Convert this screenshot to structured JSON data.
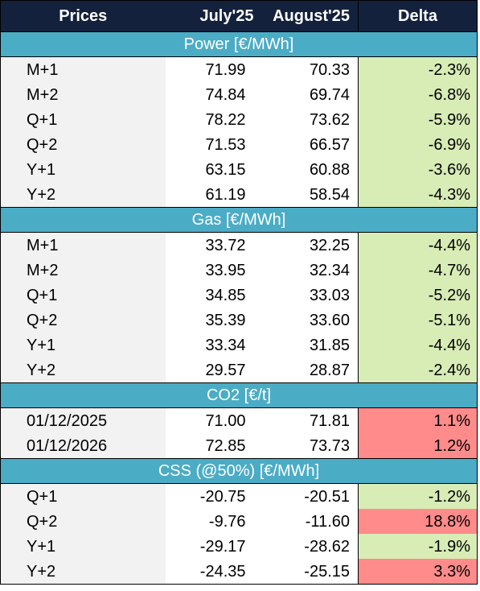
{
  "header": {
    "label": "Prices",
    "col_july": "July'25",
    "col_august": "August'25",
    "col_delta": "Delta"
  },
  "colors": {
    "header_bg": "#14213d",
    "section_bg": "#4bacc6",
    "delta_decrease_bg": "#d8ecb6",
    "delta_increase_bg": "#ff8b8b",
    "label_bg": "#f2f2f2"
  },
  "sections": [
    {
      "title": "Power [€/MWh]",
      "rows": [
        {
          "label": "M+1",
          "july": "71.99",
          "august": "70.33",
          "delta": "-2.3%",
          "trend": "down"
        },
        {
          "label": "M+2",
          "july": "74.84",
          "august": "69.74",
          "delta": "-6.8%",
          "trend": "down"
        },
        {
          "label": "Q+1",
          "july": "78.22",
          "august": "73.62",
          "delta": "-5.9%",
          "trend": "down"
        },
        {
          "label": "Q+2",
          "july": "71.53",
          "august": "66.57",
          "delta": "-6.9%",
          "trend": "down"
        },
        {
          "label": "Y+1",
          "july": "63.15",
          "august": "60.88",
          "delta": "-3.6%",
          "trend": "down"
        },
        {
          "label": "Y+2",
          "july": "61.19",
          "august": "58.54",
          "delta": "-4.3%",
          "trend": "down"
        }
      ]
    },
    {
      "title": "Gas [€/MWh]",
      "rows": [
        {
          "label": "M+1",
          "july": "33.72",
          "august": "32.25",
          "delta": "-4.4%",
          "trend": "down"
        },
        {
          "label": "M+2",
          "july": "33.95",
          "august": "32.34",
          "delta": "-4.7%",
          "trend": "down"
        },
        {
          "label": "Q+1",
          "july": "34.85",
          "august": "33.03",
          "delta": "-5.2%",
          "trend": "down"
        },
        {
          "label": "Q+2",
          "july": "35.39",
          "august": "33.60",
          "delta": "-5.1%",
          "trend": "down"
        },
        {
          "label": "Y+1",
          "july": "33.34",
          "august": "31.85",
          "delta": "-4.4%",
          "trend": "down"
        },
        {
          "label": "Y+2",
          "july": "29.57",
          "august": "28.87",
          "delta": "-2.4%",
          "trend": "down"
        }
      ]
    },
    {
      "title": "CO2 [€/t]",
      "rows": [
        {
          "label": "01/12/2025",
          "july": "71.00",
          "august": "71.81",
          "delta": "1.1%",
          "trend": "up"
        },
        {
          "label": "01/12/2026",
          "july": "72.85",
          "august": "73.73",
          "delta": "1.2%",
          "trend": "up"
        }
      ]
    },
    {
      "title": "CSS (@50%) [€/MWh]",
      "rows": [
        {
          "label": "Q+1",
          "july": "-20.75",
          "august": "-20.51",
          "delta": "-1.2%",
          "trend": "down"
        },
        {
          "label": "Q+2",
          "july": "-9.76",
          "august": "-11.60",
          "delta": "18.8%",
          "trend": "up"
        },
        {
          "label": "Y+1",
          "july": "-29.17",
          "august": "-28.62",
          "delta": "-1.9%",
          "trend": "down"
        },
        {
          "label": "Y+2",
          "july": "-24.35",
          "august": "-25.15",
          "delta": "3.3%",
          "trend": "up"
        }
      ]
    }
  ]
}
